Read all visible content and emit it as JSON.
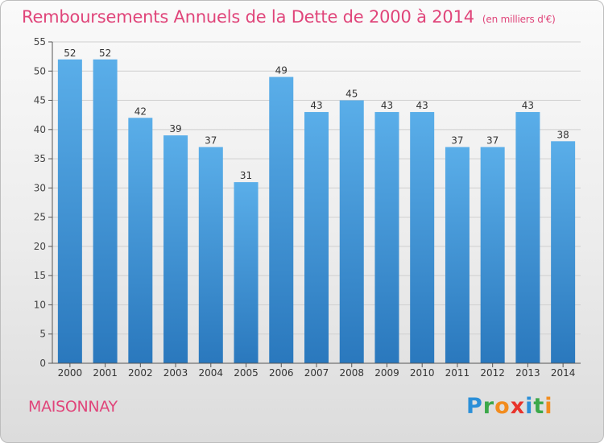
{
  "header": {
    "title": "Remboursements Annuels de la Dette de 2000 à 2014",
    "unit": "(en milliers d'€)"
  },
  "footer": {
    "city": "MAISONNAY",
    "logo_letters": [
      {
        "char": "P",
        "color": "#2b8fd8"
      },
      {
        "char": "r",
        "color": "#3ca84a"
      },
      {
        "char": "o",
        "color": "#f28c1e"
      },
      {
        "char": "x",
        "color": "#e8342c"
      },
      {
        "char": "i",
        "color": "#2b8fd8"
      },
      {
        "char": "t",
        "color": "#3ca84a"
      },
      {
        "char": "i",
        "color": "#f28c1e"
      }
    ]
  },
  "chart_data": {
    "type": "bar",
    "title": "Remboursements Annuels de la Dette de 2000 à 2014",
    "subtitle": "(en milliers d'€)",
    "categories": [
      "2000",
      "2001",
      "2002",
      "2003",
      "2004",
      "2005",
      "2006",
      "2007",
      "2008",
      "2009",
      "2010",
      "2011",
      "2012",
      "2013",
      "2014"
    ],
    "values": [
      52,
      52,
      42,
      39,
      37,
      31,
      49,
      43,
      45,
      43,
      43,
      37,
      37,
      43,
      38
    ],
    "ylim": [
      0,
      55
    ],
    "yticks": [
      0,
      5,
      10,
      15,
      20,
      25,
      30,
      35,
      40,
      45,
      50,
      55
    ],
    "grid": true,
    "legend": "none",
    "bar_color_top": "#5aaee9",
    "bar_color_bottom": "#2a78bd"
  }
}
